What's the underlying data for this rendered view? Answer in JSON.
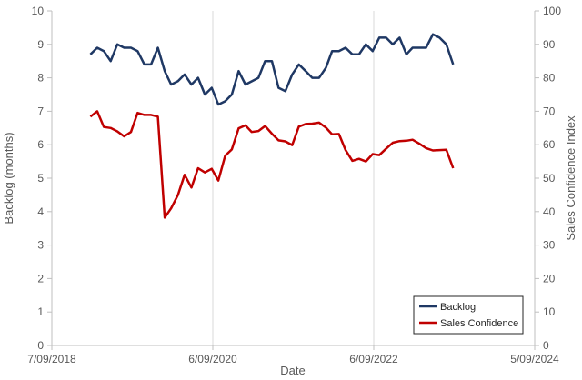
{
  "chart_data": {
    "type": "line",
    "title": "",
    "xlabel": "Date",
    "ylabel_left": "Backlog (months)",
    "ylabel_right": "Sales Confidence Index",
    "x_tick_labels": [
      "7/09/2018",
      "6/09/2020",
      "6/09/2022",
      "5/09/2024"
    ],
    "x_tick_dates": [
      "2018-09-07",
      "2020-09-06",
      "2022-09-06",
      "2024-09-05"
    ],
    "ylim_left": [
      0,
      10
    ],
    "ylim_right": [
      0,
      100
    ],
    "y_ticks_left": [
      "0",
      "1",
      "2",
      "3",
      "4",
      "5",
      "6",
      "7",
      "8",
      "9",
      "10"
    ],
    "y_ticks_right": [
      "0",
      "10",
      "20",
      "30",
      "40",
      "50",
      "60",
      "70",
      "80",
      "90",
      "100"
    ],
    "grid": "vertical",
    "legend_position": "bottom-right",
    "series": [
      {
        "name": "Backlog",
        "axis": "left",
        "color": "#1f3864",
        "points": [
          [
            "2019-03-01",
            8.7
          ],
          [
            "2019-04-01",
            8.9
          ],
          [
            "2019-05-01",
            8.8
          ],
          [
            "2019-06-01",
            8.5
          ],
          [
            "2019-07-01",
            9.0
          ],
          [
            "2019-08-01",
            8.9
          ],
          [
            "2019-09-01",
            8.9
          ],
          [
            "2019-10-01",
            8.8
          ],
          [
            "2019-11-01",
            8.4
          ],
          [
            "2019-12-01",
            8.4
          ],
          [
            "2020-01-01",
            8.9
          ],
          [
            "2020-02-01",
            8.2
          ],
          [
            "2020-03-01",
            7.8
          ],
          [
            "2020-04-01",
            7.9
          ],
          [
            "2020-05-01",
            8.1
          ],
          [
            "2020-06-01",
            7.8
          ],
          [
            "2020-07-01",
            8.0
          ],
          [
            "2020-08-01",
            7.5
          ],
          [
            "2020-09-01",
            7.7
          ],
          [
            "2020-10-01",
            7.2
          ],
          [
            "2020-11-01",
            7.3
          ],
          [
            "2020-12-01",
            7.5
          ],
          [
            "2021-01-01",
            8.2
          ],
          [
            "2021-02-01",
            7.8
          ],
          [
            "2021-04-01",
            8.0
          ],
          [
            "2021-05-01",
            8.5
          ],
          [
            "2021-06-01",
            8.5
          ],
          [
            "2021-07-01",
            7.7
          ],
          [
            "2021-08-01",
            7.6
          ],
          [
            "2021-09-01",
            8.1
          ],
          [
            "2021-10-01",
            8.4
          ],
          [
            "2021-11-01",
            8.2
          ],
          [
            "2021-12-01",
            8.0
          ],
          [
            "2022-01-01",
            8.0
          ],
          [
            "2022-02-01",
            8.3
          ],
          [
            "2022-03-01",
            8.8
          ],
          [
            "2022-04-01",
            8.8
          ],
          [
            "2022-05-01",
            8.9
          ],
          [
            "2022-06-01",
            8.7
          ],
          [
            "2022-07-01",
            8.7
          ],
          [
            "2022-08-01",
            9.0
          ],
          [
            "2022-09-01",
            8.8
          ],
          [
            "2022-10-01",
            9.2
          ],
          [
            "2022-11-01",
            9.2
          ],
          [
            "2022-12-01",
            9.0
          ],
          [
            "2023-01-01",
            9.2
          ],
          [
            "2023-02-01",
            8.7
          ],
          [
            "2023-03-01",
            8.9
          ],
          [
            "2023-05-01",
            8.9
          ],
          [
            "2023-06-01",
            9.3
          ],
          [
            "2023-07-01",
            9.2
          ],
          [
            "2023-08-01",
            9.0
          ],
          [
            "2023-09-01",
            8.4
          ]
        ]
      },
      {
        "name": "Sales Confidence",
        "axis": "right",
        "color": "#c00000",
        "points": [
          [
            "2019-03-01",
            68.4
          ],
          [
            "2019-04-01",
            70.0
          ],
          [
            "2019-05-01",
            65.3
          ],
          [
            "2019-06-01",
            65.0
          ],
          [
            "2019-07-01",
            64.0
          ],
          [
            "2019-08-01",
            62.5
          ],
          [
            "2019-09-01",
            63.8
          ],
          [
            "2019-10-01",
            69.5
          ],
          [
            "2019-11-01",
            68.9
          ],
          [
            "2019-12-01",
            68.9
          ],
          [
            "2020-01-01",
            68.4
          ],
          [
            "2020-02-01",
            38.2
          ],
          [
            "2020-03-01",
            41.0
          ],
          [
            "2020-04-01",
            45.0
          ],
          [
            "2020-05-01",
            51.0
          ],
          [
            "2020-06-01",
            47.2
          ],
          [
            "2020-07-01",
            53.0
          ],
          [
            "2020-08-01",
            51.7
          ],
          [
            "2020-09-01",
            52.8
          ],
          [
            "2020-10-01",
            49.3
          ],
          [
            "2020-11-01",
            56.7
          ],
          [
            "2020-12-01",
            58.6
          ],
          [
            "2021-01-01",
            64.9
          ],
          [
            "2021-02-01",
            65.8
          ],
          [
            "2021-03-01",
            63.8
          ],
          [
            "2021-04-01",
            64.1
          ],
          [
            "2021-05-01",
            65.6
          ],
          [
            "2021-06-01",
            63.3
          ],
          [
            "2021-07-01",
            61.3
          ],
          [
            "2021-08-01",
            61.0
          ],
          [
            "2021-09-01",
            59.9
          ],
          [
            "2021-10-01",
            65.4
          ],
          [
            "2021-11-01",
            66.2
          ],
          [
            "2021-12-01",
            66.3
          ],
          [
            "2022-01-01",
            66.6
          ],
          [
            "2022-02-01",
            65.1
          ],
          [
            "2022-03-01",
            63.1
          ],
          [
            "2022-04-01",
            63.2
          ],
          [
            "2022-05-01",
            58.4
          ],
          [
            "2022-06-01",
            55.2
          ],
          [
            "2022-07-01",
            55.8
          ],
          [
            "2022-08-01",
            55.0
          ],
          [
            "2022-09-01",
            57.2
          ],
          [
            "2022-10-01",
            56.9
          ],
          [
            "2022-11-01",
            58.8
          ],
          [
            "2022-12-01",
            60.6
          ],
          [
            "2023-01-01",
            61.1
          ],
          [
            "2023-02-01",
            61.2
          ],
          [
            "2023-03-01",
            61.5
          ],
          [
            "2023-04-01",
            60.3
          ],
          [
            "2023-05-01",
            59.0
          ],
          [
            "2023-06-01",
            58.3
          ],
          [
            "2023-07-01",
            58.4
          ],
          [
            "2023-08-01",
            58.5
          ],
          [
            "2023-09-01",
            53.0
          ]
        ]
      }
    ]
  }
}
